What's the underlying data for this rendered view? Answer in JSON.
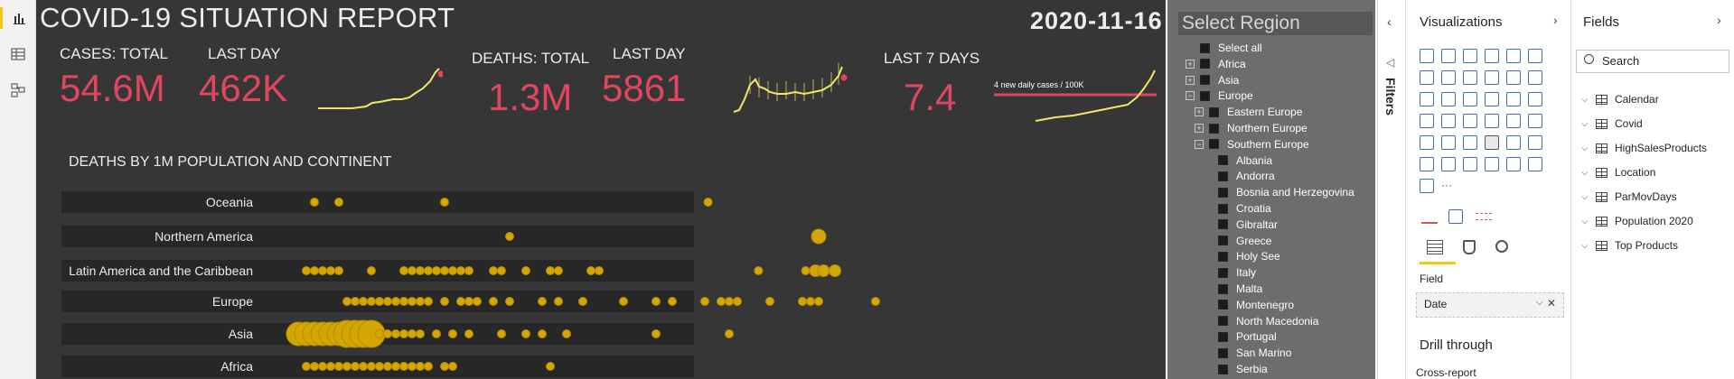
{
  "report": {
    "title": "COVID-19 SITUATION REPORT",
    "date": "2020-11-16",
    "kpis": {
      "cases_total_label": "CASES: TOTAL",
      "cases_total_value": "54.6M",
      "cases_last_day_label": "LAST DAY",
      "cases_last_day_value": "462K",
      "deaths_total_label": "DEATHS: TOTAL",
      "deaths_total_value": "1.3M",
      "deaths_last_day_label": "LAST DAY",
      "deaths_last_day_value": "5861",
      "last7_label": "LAST 7 DAYS",
      "last7_value": "7.4",
      "threshold_label": "4 new daily cases / 100K"
    },
    "chart_title": "DEATHS BY 1M POPULATION AND CONTINENT",
    "continents": [
      "Oceania",
      "Northern America",
      "Latin America and the Caribbean",
      "Europe",
      "Asia",
      "Africa"
    ]
  },
  "chart_data": {
    "type": "scatter",
    "title": "DEATHS BY 1M POPULATION AND CONTINENT",
    "categories": [
      "Oceania",
      "Northern America",
      "Latin America and the Caribbean",
      "Europe",
      "Asia",
      "Africa"
    ],
    "series": [
      {
        "category": "Oceania",
        "x": [
          10,
          25,
          90,
          252
        ]
      },
      {
        "category": "Northern America",
        "x": [
          130,
          320
        ]
      },
      {
        "category": "Latin America and the Caribbean",
        "x": [
          5,
          10,
          15,
          20,
          25,
          45,
          65,
          70,
          75,
          80,
          85,
          90,
          95,
          100,
          105,
          120,
          125,
          140,
          155,
          160,
          180,
          185,
          283,
          312,
          318,
          323,
          330
        ]
      },
      {
        "category": "Europe",
        "x": [
          30,
          35,
          40,
          45,
          50,
          55,
          60,
          65,
          70,
          75,
          80,
          90,
          100,
          105,
          110,
          120,
          130,
          150,
          160,
          175,
          200,
          220,
          230,
          250,
          260,
          265,
          270,
          290,
          310,
          315,
          320,
          355
        ]
      },
      {
        "category": "Asia",
        "x": [
          0,
          5,
          10,
          15,
          20,
          25,
          30,
          35,
          40,
          45,
          50,
          55,
          60,
          65,
          70,
          75,
          85,
          95,
          105,
          125,
          140,
          150,
          165,
          220,
          265
        ]
      },
      {
        "category": "Africa",
        "x": [
          5,
          10,
          15,
          20,
          25,
          30,
          35,
          40,
          45,
          50,
          55,
          60,
          65,
          70,
          75,
          80,
          90,
          95,
          155
        ]
      }
    ]
  },
  "slicer": {
    "title": "Select Region",
    "items": [
      {
        "label": "Select all",
        "expander": "",
        "level": 0
      },
      {
        "label": "Africa",
        "expander": "+",
        "level": 0
      },
      {
        "label": "Asia",
        "expander": "+",
        "level": 0
      },
      {
        "label": "Europe",
        "expander": "−",
        "level": 0
      },
      {
        "label": "Eastern Europe",
        "expander": "+",
        "level": 1
      },
      {
        "label": "Northern Europe",
        "expander": "+",
        "level": 1
      },
      {
        "label": "Southern Europe",
        "expander": "−",
        "level": 1
      },
      {
        "label": "Albania",
        "expander": "",
        "level": 2
      },
      {
        "label": "Andorra",
        "expander": "",
        "level": 2
      },
      {
        "label": "Bosnia and Herzegovina",
        "expander": "",
        "level": 2
      },
      {
        "label": "Croatia",
        "expander": "",
        "level": 2
      },
      {
        "label": "Gibraltar",
        "expander": "",
        "level": 2
      },
      {
        "label": "Greece",
        "expander": "",
        "level": 2
      },
      {
        "label": "Holy See",
        "expander": "",
        "level": 2
      },
      {
        "label": "Italy",
        "expander": "",
        "level": 2
      },
      {
        "label": "Malta",
        "expander": "",
        "level": 2
      },
      {
        "label": "Montenegro",
        "expander": "",
        "level": 2
      },
      {
        "label": "North Macedonia",
        "expander": "",
        "level": 2
      },
      {
        "label": "Portugal",
        "expander": "",
        "level": 2
      },
      {
        "label": "San Marino",
        "expander": "",
        "level": 2
      },
      {
        "label": "Serbia",
        "expander": "",
        "level": 2
      }
    ]
  },
  "filters_label": "Filters",
  "visualizations": {
    "title": "Visualizations",
    "field_label": "Field",
    "field_value": "Date",
    "drill_through": "Drill through",
    "cross_report": "Cross-report"
  },
  "fields_pane": {
    "title": "Fields",
    "search_placeholder": "Search",
    "tables": [
      "Calendar",
      "Covid",
      "HighSalesProducts",
      "Location",
      "ParMovDays",
      "Population 2020",
      "Top Products"
    ]
  },
  "colors": {
    "accent": "#f2c811",
    "kpi": "#e0465e",
    "canvas": "#363636",
    "dot": "#d4a600"
  }
}
